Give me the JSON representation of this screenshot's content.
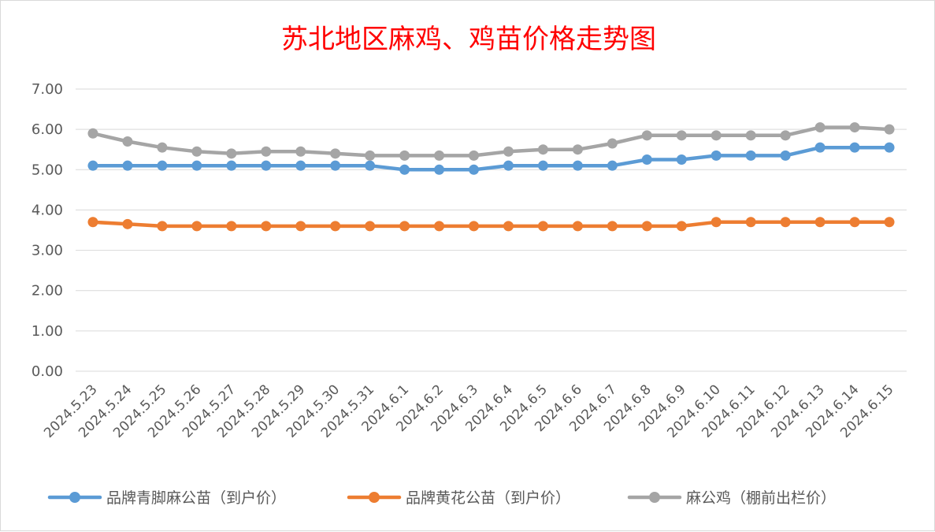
{
  "chart_data": {
    "type": "line",
    "title": "苏北地区麻鸡、鸡苗价格走势图",
    "categories": [
      "2024.5.23",
      "2024.5.24",
      "2024.5.25",
      "2024.5.26",
      "2024.5.27",
      "2024.5.28",
      "2024.5.29",
      "2024.5.30",
      "2024.5.31",
      "2024.6.1",
      "2024.6.2",
      "2024.6.3",
      "2024.6.4",
      "2024.6.5",
      "2024.6.6",
      "2024.6.7",
      "2024.6.8",
      "2024.6.9",
      "2024.6.10",
      "2024.6.11",
      "2024.6.12",
      "2024.6.13",
      "2024.6.14",
      "2024.6.15"
    ],
    "ylim": [
      0,
      7
    ],
    "yticks": [
      "0.00",
      "1.00",
      "2.00",
      "3.00",
      "4.00",
      "5.00",
      "6.00",
      "7.00"
    ],
    "grid": true,
    "legend_position": "bottom",
    "series": [
      {
        "name": "品牌青脚麻公苗（到户价）",
        "color": "#5b9bd5",
        "values": [
          5.1,
          5.1,
          5.1,
          5.1,
          5.1,
          5.1,
          5.1,
          5.1,
          5.1,
          5.0,
          5.0,
          5.0,
          5.1,
          5.1,
          5.1,
          5.1,
          5.25,
          5.25,
          5.35,
          5.35,
          5.35,
          5.55,
          5.55,
          5.55
        ]
      },
      {
        "name": "品牌黄花公苗（到户价）",
        "color": "#ed7d31",
        "values": [
          3.7,
          3.65,
          3.6,
          3.6,
          3.6,
          3.6,
          3.6,
          3.6,
          3.6,
          3.6,
          3.6,
          3.6,
          3.6,
          3.6,
          3.6,
          3.6,
          3.6,
          3.6,
          3.7,
          3.7,
          3.7,
          3.7,
          3.7,
          3.7
        ]
      },
      {
        "name": "麻公鸡（棚前出栏价）",
        "color": "#a5a5a5",
        "values": [
          5.9,
          5.7,
          5.55,
          5.45,
          5.4,
          5.45,
          5.45,
          5.4,
          5.35,
          5.35,
          5.35,
          5.35,
          5.45,
          5.5,
          5.5,
          5.65,
          5.85,
          5.85,
          5.85,
          5.85,
          5.85,
          6.05,
          6.05,
          6.0
        ]
      }
    ]
  }
}
